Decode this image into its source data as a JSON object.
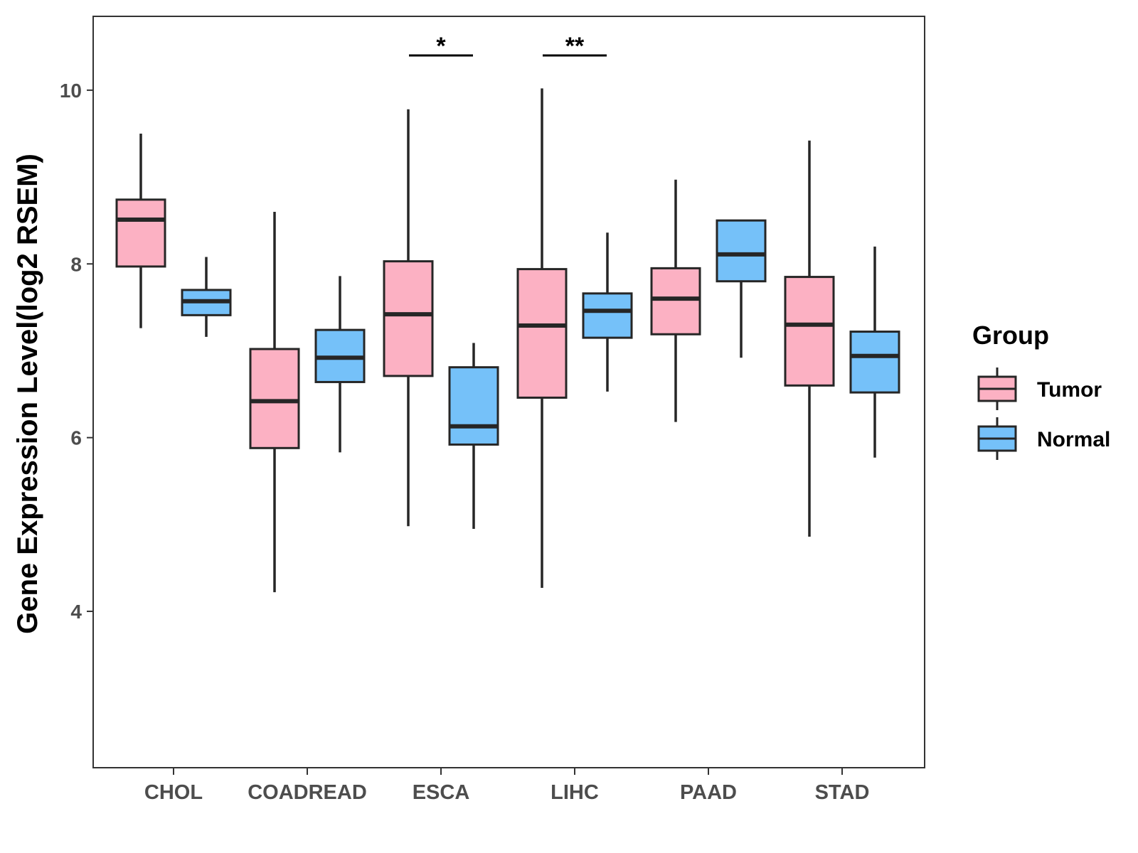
{
  "chart_data": {
    "type": "box",
    "title": "",
    "xlabel": "",
    "ylabel": "Gene Expression Level(log2 RSEM)",
    "ylim": [
      2.2,
      10.85
    ],
    "yticks": [
      4,
      6,
      8,
      10
    ],
    "categories": [
      "CHOL",
      "COADREAD",
      "ESCA",
      "LIHC",
      "PAAD",
      "STAD"
    ],
    "legend": {
      "title": "Group",
      "position": "right",
      "entries": [
        "Tumor",
        "Normal"
      ]
    },
    "colors": {
      "Tumor": "#FCB1C3",
      "Normal": "#75C1F9",
      "outline": "#262626"
    },
    "series": [
      {
        "name": "Tumor",
        "boxes": [
          {
            "category": "CHOL",
            "min": 7.26,
            "q1": 7.97,
            "median": 8.51,
            "q3": 8.74,
            "max": 9.5
          },
          {
            "category": "COADREAD",
            "min": 4.22,
            "q1": 5.88,
            "median": 6.42,
            "q3": 7.02,
            "max": 8.6
          },
          {
            "category": "ESCA",
            "min": 4.98,
            "q1": 6.71,
            "median": 7.42,
            "q3": 8.03,
            "max": 9.78
          },
          {
            "category": "LIHC",
            "min": 4.27,
            "q1": 6.46,
            "median": 7.29,
            "q3": 7.94,
            "max": 10.02
          },
          {
            "category": "PAAD",
            "min": 6.18,
            "q1": 7.19,
            "median": 7.6,
            "q3": 7.95,
            "max": 8.97
          },
          {
            "category": "STAD",
            "min": 4.86,
            "q1": 6.6,
            "median": 7.3,
            "q3": 7.85,
            "max": 9.42
          }
        ]
      },
      {
        "name": "Normal",
        "boxes": [
          {
            "category": "CHOL",
            "min": 7.16,
            "q1": 7.41,
            "median": 7.57,
            "q3": 7.7,
            "max": 8.08
          },
          {
            "category": "COADREAD",
            "min": 5.83,
            "q1": 6.64,
            "median": 6.92,
            "q3": 7.24,
            "max": 7.86
          },
          {
            "category": "ESCA",
            "min": 4.95,
            "q1": 5.92,
            "median": 6.13,
            "q3": 6.81,
            "max": 7.09
          },
          {
            "category": "LIHC",
            "min": 6.53,
            "q1": 7.15,
            "median": 7.46,
            "q3": 7.66,
            "max": 8.36
          },
          {
            "category": "PAAD",
            "min": 6.92,
            "q1": 7.8,
            "median": 8.11,
            "q3": 8.5,
            "max": 8.5
          },
          {
            "category": "STAD",
            "min": 5.77,
            "q1": 6.52,
            "median": 6.94,
            "q3": 7.22,
            "max": 8.2
          }
        ]
      }
    ],
    "significance": [
      {
        "category": "ESCA",
        "label": "*",
        "y": 10.4
      },
      {
        "category": "LIHC",
        "label": "**",
        "y": 10.4
      }
    ]
  }
}
